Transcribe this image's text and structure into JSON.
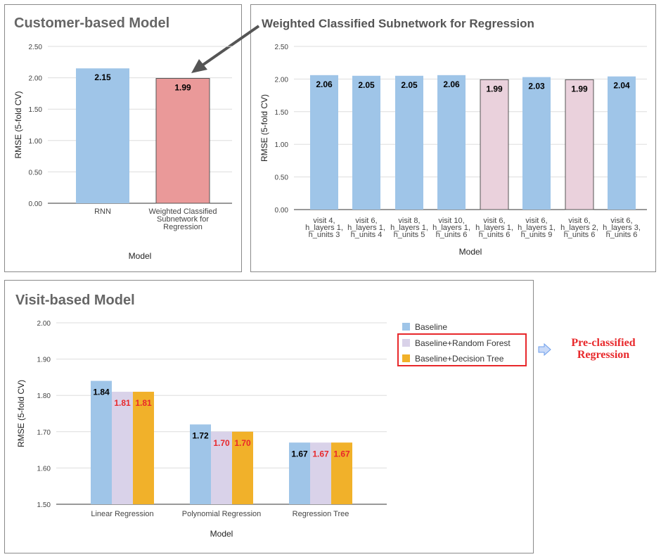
{
  "customer_panel": {
    "title": "Customer-based Model"
  },
  "weighted_panel": {
    "title": "Weighted Classified Subnetwork for Regression"
  },
  "visit_panel": {
    "title": "Visit-based Model"
  },
  "legend": {
    "items": [
      {
        "label": "Baseline",
        "color": "#9fc5e8"
      },
      {
        "label": "Baseline+Random Forest",
        "color": "#d9d2e9"
      },
      {
        "label": "Baseline+Decision Tree",
        "color": "#f1b12a"
      }
    ]
  },
  "annotation": {
    "pre_classified": "Pre-classified Regression"
  },
  "chart_data": [
    {
      "id": "customer",
      "type": "bar",
      "title": "Customer-based Model",
      "xlabel": "Model",
      "ylabel": "RMSE (5-fold CV)",
      "ylim": [
        0,
        2.5
      ],
      "yticks": [
        "0.00",
        "0.50",
        "1.00",
        "1.50",
        "2.00",
        "2.50"
      ],
      "categories": [
        [
          "RNN"
        ],
        [
          "Weighted Classified",
          "Subnetwork for",
          "Regression"
        ]
      ],
      "values": [
        2.15,
        1.99
      ],
      "labels": [
        "2.15",
        "1.99"
      ],
      "colors": [
        "#9fc5e8",
        "#ea9999"
      ]
    },
    {
      "id": "weighted",
      "type": "bar",
      "title": "Weighted Classified Subnetwork for Regression",
      "xlabel": "Model",
      "ylabel": "RMSE (5-fold CV)",
      "ylim": [
        0,
        2.5
      ],
      "yticks": [
        "0.00",
        "0.50",
        "1.00",
        "1.50",
        "2.00",
        "2.50"
      ],
      "categories": [
        [
          "visit 4,",
          "h_layers 1,",
          "h_units 3"
        ],
        [
          "visit 6,",
          "h_layers 1,",
          "h_units 4"
        ],
        [
          "visit 8,",
          "h_layers 1,",
          "h_units 5"
        ],
        [
          "visit 10,",
          "h_layers 1,",
          "h_units 6"
        ],
        [
          "visit 6,",
          "h_layers 1,",
          "h_units 6"
        ],
        [
          "visit 6,",
          "h_layers 1,",
          "h_units 9"
        ],
        [
          "visit 6,",
          "h_layers 2,",
          "h_units 6"
        ],
        [
          "visit 6,",
          "h_layers 3,",
          "h_units 6"
        ]
      ],
      "values": [
        2.06,
        2.05,
        2.05,
        2.06,
        1.99,
        2.03,
        1.99,
        2.04
      ],
      "labels": [
        "2.06",
        "2.05",
        "2.05",
        "2.06",
        "1.99",
        "2.03",
        "1.99",
        "2.04"
      ],
      "colors": [
        "#9fc5e8",
        "#9fc5e8",
        "#9fc5e8",
        "#9fc5e8",
        "#ead1dc",
        "#9fc5e8",
        "#ead1dc",
        "#9fc5e8"
      ]
    },
    {
      "id": "visit",
      "type": "bar",
      "title": "Visit-based Model",
      "xlabel": "Model",
      "ylabel": "RMSE (5-fold CV)",
      "ylim": [
        1.5,
        2.0
      ],
      "yticks": [
        "1.50",
        "1.60",
        "1.70",
        "1.80",
        "1.90",
        "2.00"
      ],
      "categories": [
        "Linear Regression",
        "Polynomial Regression",
        "Regression Tree"
      ],
      "series": [
        {
          "name": "Baseline",
          "values": [
            1.84,
            1.72,
            1.67
          ],
          "labels": [
            "1.84",
            "1.72",
            "1.67"
          ],
          "color": "#9fc5e8",
          "label_color": "#000000"
        },
        {
          "name": "Baseline+Random Forest",
          "values": [
            1.81,
            1.7,
            1.67
          ],
          "labels": [
            "1.81",
            "1.70",
            "1.67"
          ],
          "color": "#d9d2e9",
          "label_color": "#e8282b"
        },
        {
          "name": "Baseline+Decision Tree",
          "values": [
            1.81,
            1.7,
            1.67
          ],
          "labels": [
            "1.81",
            "1.70",
            "1.67"
          ],
          "color": "#f1b12a",
          "label_color": "#e8282b"
        }
      ]
    }
  ]
}
